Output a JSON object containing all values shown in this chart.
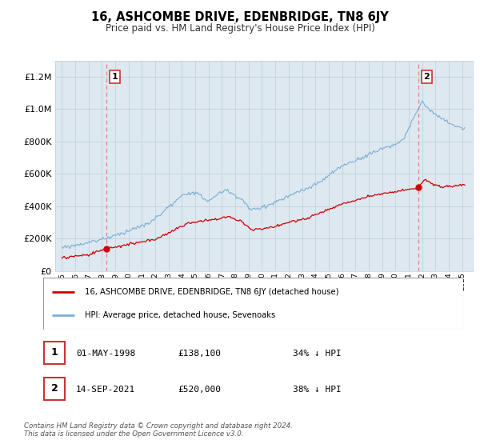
{
  "title": "16, ASHCOMBE DRIVE, EDENBRIDGE, TN8 6JY",
  "subtitle": "Price paid vs. HM Land Registry's House Price Index (HPI)",
  "legend_label_red": "16, ASHCOMBE DRIVE, EDENBRIDGE, TN8 6JY (detached house)",
  "legend_label_blue": "HPI: Average price, detached house, Sevenoaks",
  "point1_date": "01-MAY-1998",
  "point1_price": "£138,100",
  "point1_hpi": "34% ↓ HPI",
  "point2_date": "14-SEP-2021",
  "point2_price": "£520,000",
  "point2_hpi": "38% ↓ HPI",
  "footer": "Contains HM Land Registry data © Crown copyright and database right 2024.\nThis data is licensed under the Open Government Licence v3.0.",
  "red_color": "#cc0000",
  "blue_color": "#7ab0d4",
  "vline_color": "#e88080",
  "bg_color": "#dde8f0",
  "grid_color": "#c0cdd6"
}
